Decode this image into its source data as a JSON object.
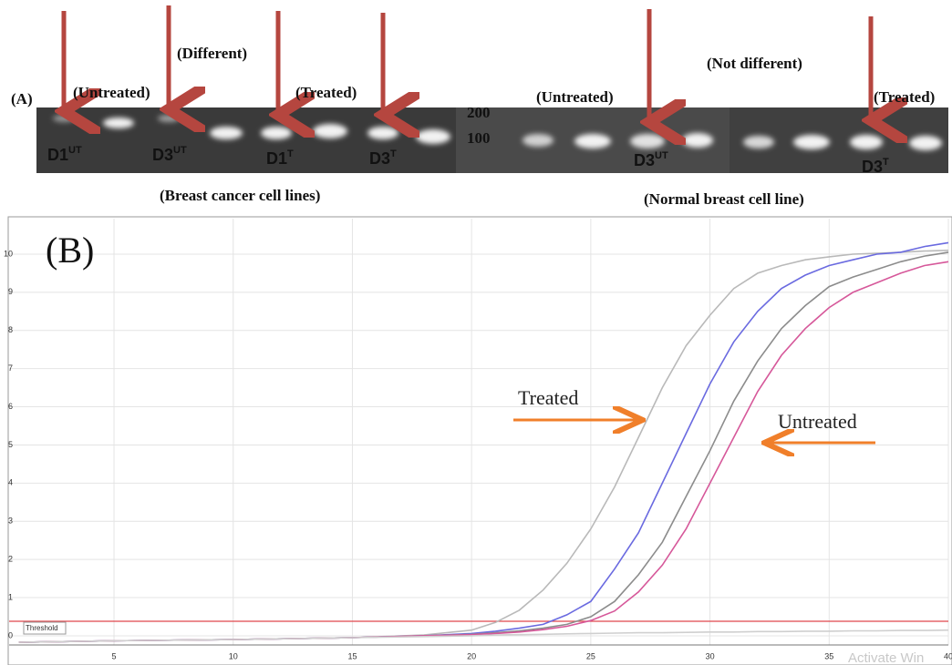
{
  "panel_a": {
    "panel_label": "(A)",
    "left_gel": {
      "untreated": "(Untreated)",
      "different": "(Different)",
      "treated": "(Treated)",
      "lanes": [
        {
          "main": "D1",
          "sup": "UT"
        },
        {
          "main": "D3",
          "sup": "UT"
        },
        {
          "main": "D1",
          "sup": "T"
        },
        {
          "main": "D3",
          "sup": "T"
        }
      ],
      "caption": "(Breast cancer cell lines)"
    },
    "right_gel": {
      "marker_200": "200",
      "marker_100": "100",
      "untreated": "(Untreated)",
      "not_different": "(Not different)",
      "treated": "(Treated)",
      "lanes": [
        {
          "main": "D3",
          "sup": "UT"
        },
        {
          "main": "D3",
          "sup": "T"
        }
      ],
      "caption": "(Normal breast cell line)"
    }
  },
  "chart_data": {
    "type": "line",
    "title": "(B)",
    "x": [
      1,
      5,
      10,
      15,
      18,
      20,
      21,
      22,
      23,
      24,
      25,
      26,
      27,
      28,
      29,
      30,
      31,
      32,
      33,
      34,
      35,
      36,
      37,
      38,
      39,
      40
    ],
    "series": [
      {
        "color": "#b9b9b9",
        "values": [
          -0.17,
          -0.13,
          -0.1,
          -0.05,
          0.02,
          0.15,
          0.35,
          0.67,
          1.2,
          1.9,
          2.8,
          3.9,
          5.2,
          6.5,
          7.6,
          8.4,
          9.1,
          9.5,
          9.7,
          9.85,
          9.93,
          10,
          10.02,
          10.05,
          10.08,
          10.1
        ]
      },
      {
        "color": "#6a6ae0",
        "values": [
          -0.17,
          -0.13,
          -0.1,
          -0.05,
          0,
          0.06,
          0.12,
          0.2,
          0.3,
          0.55,
          0.9,
          1.75,
          2.7,
          4.0,
          5.3,
          6.6,
          7.7,
          8.5,
          9.1,
          9.45,
          9.7,
          9.85,
          10,
          10.05,
          10.2,
          10.3
        ]
      },
      {
        "color": "#8c8c8c",
        "values": [
          -0.17,
          -0.13,
          -0.1,
          -0.05,
          0,
          0.04,
          0.08,
          0.13,
          0.2,
          0.3,
          0.5,
          0.9,
          1.6,
          2.45,
          3.65,
          4.85,
          6.15,
          7.2,
          8.05,
          8.65,
          9.15,
          9.4,
          9.6,
          9.8,
          9.95,
          10.05
        ]
      },
      {
        "color": "#d6589a",
        "values": [
          -0.17,
          -0.13,
          -0.1,
          -0.05,
          0,
          0.03,
          0.06,
          0.1,
          0.16,
          0.25,
          0.4,
          0.65,
          1.15,
          1.85,
          2.8,
          4.0,
          5.2,
          6.4,
          7.35,
          8.05,
          8.6,
          9.0,
          9.25,
          9.5,
          9.7,
          9.8
        ]
      },
      {
        "color": "#cfcfcf",
        "values": [
          -0.17,
          -0.13,
          -0.1,
          -0.05,
          -0.02,
          0,
          0.02,
          0.03,
          0.04,
          0.05,
          0.06,
          0.07,
          0.08,
          0.08,
          0.09,
          0.1,
          0.1,
          0.11,
          0.11,
          0.12,
          0.12,
          0.13,
          0.13,
          0.14,
          0.14,
          0.15
        ]
      }
    ],
    "xlim": [
      0.6,
      40
    ],
    "xticks": [
      5,
      10,
      15,
      20,
      25,
      30,
      35,
      40
    ],
    "ylim": [
      -0.24,
      10.93
    ],
    "yticks": [
      0,
      1,
      2,
      3,
      4,
      5,
      6,
      7,
      8,
      9,
      10
    ],
    "grid": true,
    "threshold": {
      "label": "Threshold",
      "value": 0.38,
      "color": "#e0474c"
    },
    "annotations": {
      "treated": "Treated",
      "untreated": "Untreated",
      "watermark": "Activate Win"
    }
  }
}
